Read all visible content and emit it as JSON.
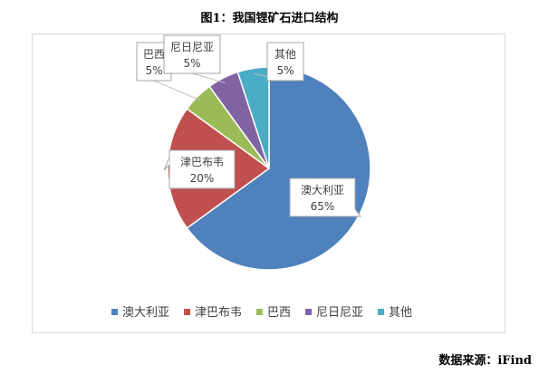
{
  "title": "图1：我国锂矿石进口结构",
  "source": "数据来源：iFind",
  "chart_data": {
    "type": "pie",
    "title": "",
    "start_angle_deg": 0,
    "direction": "clockwise",
    "legend_position": "bottom",
    "slices": [
      {
        "name": "澳大利亚",
        "value": 65,
        "label": "65%",
        "color": "#4F81BD"
      },
      {
        "name": "津巴布韦",
        "value": 20,
        "label": "20%",
        "color": "#C0504D"
      },
      {
        "name": "巴西",
        "value": 5,
        "label": "5%",
        "color": "#9BBB59"
      },
      {
        "name": "尼日尼亚",
        "value": 5,
        "label": "5%",
        "color": "#8064A2"
      },
      {
        "name": "其他",
        "value": 5,
        "label": "5%",
        "color": "#4BACC6"
      }
    ]
  }
}
